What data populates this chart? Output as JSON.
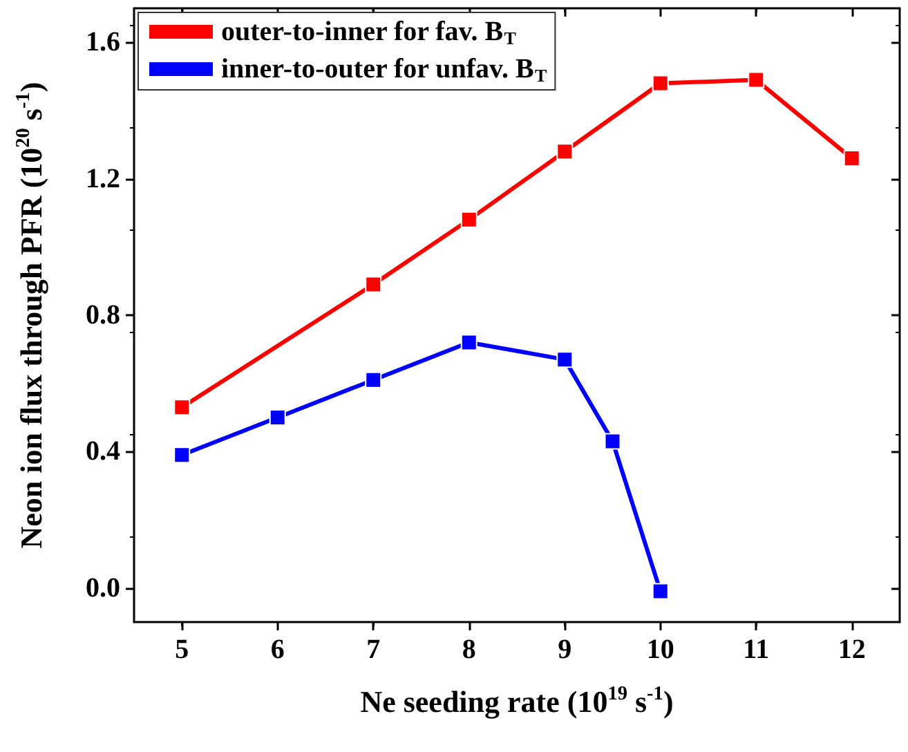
{
  "chart_data": {
    "type": "line",
    "xlabel": "Ne seeding rate (10$^{19}$ s$^{-1}$)",
    "ylabel": "Neon ion flux through PFR (10$^{20}$ s$^{-1}$)",
    "xlim": [
      4.5,
      12.5
    ],
    "xticks": [
      5,
      6,
      7,
      8,
      9,
      10,
      11,
      12
    ],
    "ylim": [
      -0.1,
      1.7
    ],
    "yticks": [
      {
        "value": 0,
        "label": "0.0"
      },
      0.4,
      0.8,
      1.2,
      1.6
    ],
    "series": [
      {
        "name": "outer-to-inner for fav. B$_{T}$",
        "color": "#ff0000",
        "x": [
          5,
          7,
          8,
          9,
          10,
          11,
          12
        ],
        "values": [
          0.53,
          0.89,
          1.08,
          1.28,
          1.48,
          1.49,
          1.26
        ]
      },
      {
        "name": "inner-to-outer for unfav. B$_{T}$",
        "color": "#0000ff",
        "x": [
          5,
          6,
          7,
          8,
          9,
          9.5,
          10
        ],
        "values": [
          0.39,
          0.5,
          0.61,
          0.72,
          0.67,
          0.43,
          -0.01
        ]
      }
    ],
    "legend": "top left",
    "marker": "square",
    "line_style": "solid",
    "grid": false
  }
}
